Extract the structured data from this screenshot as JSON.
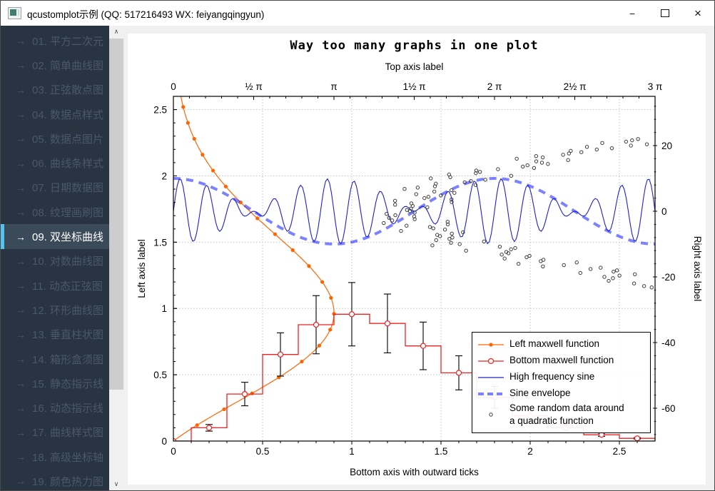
{
  "window": {
    "title": "qcustomplot示例 (QQ: 517216493 WX: feiyangqingyun)",
    "controls": {
      "minimize_glyph": "−",
      "close_glyph": "×"
    }
  },
  "sidebar": {
    "arrow_icon": "→",
    "selected_index": 8,
    "items": [
      "01. 平方二次元",
      "02. 简单曲线图",
      "03. 正弦散点图",
      "04. 数据点样式",
      "05. 数据点图片",
      "06. 曲线条样式",
      "07. 日期数据图",
      "08. 纹理画刷图",
      "09. 双坐标曲线",
      "10. 对数曲线图",
      "11. 动态正弦图",
      "12. 环形曲线图",
      "13. 垂直柱状图",
      "14. 箱形盒须图",
      "15. 静态指示线",
      "16. 动态指示线",
      "17. 曲线样式图",
      "18. 高级坐标轴",
      "19. 颜色热力图"
    ],
    "scrollbar": {
      "up_glyph": "∧",
      "down_glyph": "∨"
    }
  },
  "chart_data": {
    "type": "line",
    "title": "Way too many graphs in one plot",
    "grid": true,
    "legend_position": "bottom-right",
    "axes": {
      "bottom": {
        "label": "Bottom axis with outward ticks",
        "range": [
          0,
          2.7
        ],
        "ticks": [
          0,
          0.5,
          1,
          1.5,
          2,
          2.5
        ],
        "tick_labels": [
          "0",
          "0.5",
          "1",
          "1.5",
          "2",
          "2.5"
        ]
      },
      "left": {
        "label": "Left axis label",
        "range": [
          0,
          2.6
        ],
        "ticks": [
          0,
          0.5,
          1,
          1.5,
          2,
          2.5
        ],
        "tick_labels": [
          "0",
          "0.5",
          "1",
          "1.5",
          "2",
          "2.5"
        ]
      },
      "top": {
        "label": "Top axis label",
        "range": [
          0,
          9.42477796
        ],
        "ticks": [
          0,
          1.57079633,
          3.14159265,
          4.71238898,
          6.28318531,
          7.85398163,
          9.42477796
        ],
        "tick_labels": [
          "0",
          "½ π",
          "π",
          "1½ π",
          "2 π",
          "2½ π",
          "3 π"
        ]
      },
      "right": {
        "label": "Right axis label",
        "range": [
          -70,
          35
        ],
        "ticks": [
          20,
          0,
          -20,
          -40,
          -60
        ],
        "tick_labels": [
          "20",
          "0",
          "-20",
          "-40",
          "-60"
        ]
      }
    },
    "series": [
      {
        "name": "Left maxwell function",
        "style": "line+disc",
        "color": "#ff6400",
        "key_axis": "left",
        "value_axis": "bottom",
        "formula": "value = exp(-k*k*0.8)*(k*k+k)",
        "n_points": 25,
        "key_max": 2.88
      },
      {
        "name": "Bottom maxwell function",
        "style": "step-center+circle+errorbars",
        "color": "#ee2222",
        "key_axis": "bottom",
        "value_axis": "left",
        "x": [
          0,
          0.2,
          0.4,
          0.6,
          0.8,
          1.0,
          1.2,
          1.4,
          1.6,
          1.8,
          2.0,
          2.2,
          2.4,
          2.6,
          2.8
        ],
        "y": [
          0,
          0.0999,
          0.3545,
          0.653,
          0.8774,
          0.9565,
          0.8871,
          0.7178,
          0.5145,
          0.3299,
          0.1905,
          0.0995,
          0.0472,
          0.0204,
          0.008
        ],
        "error_factor": 0.25
      },
      {
        "name": "High frequency sine",
        "style": "line",
        "color": "#2121cc",
        "key_axis": "top",
        "value_axis": "right",
        "formula": "y = sin(12x)*cos(x)*10",
        "n_points": 250
      },
      {
        "name": "Sine envelope",
        "style": "dashed-line",
        "color": "rgba(30,40,255,0.58)",
        "width": 4,
        "key_axis": "top",
        "value_axis": "right",
        "formula": "y = cos(x)*10"
      },
      {
        "name": "Some random data around\na quadratic function",
        "style": "scatter-circle",
        "color": "#3c3c3c",
        "key_axis": "right",
        "value_axis": "top",
        "formula": "value = 0.01*k*k + 4.712 + 1.5*(rand-0.5), k in [-50,50]",
        "n_points": 250
      }
    ]
  }
}
